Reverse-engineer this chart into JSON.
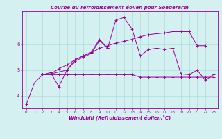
{
  "title": "Courbe du refroidissement éolien pour Soederarm",
  "xlabel": "Windchill (Refroidissement éolien,°C)",
  "background_color": "#d4f0f0",
  "line_color": "#990099",
  "xlim": [
    -0.5,
    23.5
  ],
  "ylim": [
    3.5,
    7.3
  ],
  "xticks": [
    0,
    1,
    2,
    3,
    4,
    5,
    6,
    7,
    8,
    9,
    10,
    11,
    12,
    13,
    14,
    15,
    16,
    17,
    18,
    19,
    20,
    21,
    22,
    23
  ],
  "yticks": [
    4,
    5,
    6
  ],
  "grid_color": "#aadddd",
  "series": [
    [
      3.65,
      4.5,
      4.82,
      4.9,
      4.35,
      5.0,
      5.4,
      5.55,
      5.7,
      6.2,
      5.85,
      6.95,
      7.05,
      6.6,
      5.55,
      5.8,
      5.85,
      5.8,
      5.85,
      4.85,
      4.82,
      5.0,
      4.6,
      4.82
    ],
    [
      null,
      null,
      4.82,
      4.85,
      null,
      5.0,
      5.35,
      5.5,
      5.65,
      6.15,
      5.85,
      null,
      null,
      null,
      null,
      null,
      null,
      null,
      null,
      null,
      null,
      null,
      null,
      null
    ],
    [
      null,
      null,
      4.82,
      4.82,
      4.82,
      4.82,
      4.82,
      4.82,
      4.82,
      4.82,
      4.82,
      4.82,
      4.82,
      4.82,
      4.72,
      4.72,
      4.72,
      4.72,
      4.72,
      4.72,
      4.72,
      4.72,
      4.72,
      4.72
    ],
    [
      null,
      null,
      4.82,
      4.85,
      5.05,
      5.2,
      5.4,
      5.55,
      5.68,
      5.85,
      5.95,
      6.05,
      6.12,
      6.2,
      6.3,
      6.38,
      6.42,
      6.45,
      6.5,
      6.5,
      6.5,
      5.95,
      5.95,
      null
    ]
  ]
}
